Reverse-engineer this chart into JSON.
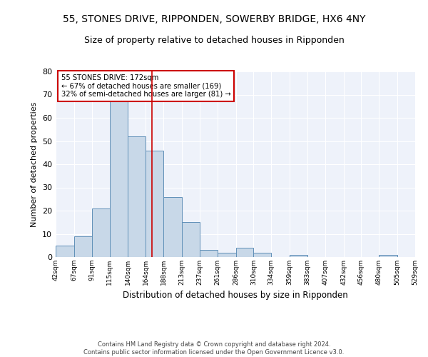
{
  "title1": "55, STONES DRIVE, RIPPONDEN, SOWERBY BRIDGE, HX6 4NY",
  "title2": "Size of property relative to detached houses in Ripponden",
  "xlabel": "Distribution of detached houses by size in Ripponden",
  "ylabel": "Number of detached properties",
  "annotation_line1": "55 STONES DRIVE: 172sqm",
  "annotation_line2": "← 67% of detached houses are smaller (169)",
  "annotation_line3": "32% of semi-detached houses are larger (81) →",
  "property_size": 172,
  "bin_edges": [
    42,
    67,
    91,
    115,
    140,
    164,
    188,
    213,
    237,
    261,
    286,
    310,
    334,
    359,
    383,
    407,
    432,
    456,
    480,
    505,
    529
  ],
  "bin_labels": [
    "42sqm",
    "67sqm",
    "91sqm",
    "115sqm",
    "140sqm",
    "164sqm",
    "188sqm",
    "213sqm",
    "237sqm",
    "261sqm",
    "286sqm",
    "310sqm",
    "334sqm",
    "359sqm",
    "383sqm",
    "407sqm",
    "432sqm",
    "456sqm",
    "480sqm",
    "505sqm",
    "529sqm"
  ],
  "counts": [
    5,
    9,
    21,
    67,
    52,
    46,
    26,
    15,
    3,
    2,
    4,
    2,
    0,
    1,
    0,
    0,
    0,
    0,
    1,
    0
  ],
  "bar_color": "#c8d8e8",
  "bar_edge_color": "#6090b8",
  "vline_color": "#cc0000",
  "vline_x": 172,
  "annotation_box_color": "#cc0000",
  "ylim": [
    0,
    80
  ],
  "yticks": [
    0,
    10,
    20,
    30,
    40,
    50,
    60,
    70,
    80
  ],
  "footer1": "Contains HM Land Registry data © Crown copyright and database right 2024.",
  "footer2": "Contains public sector information licensed under the Open Government Licence v3.0.",
  "background_color": "#eef2fa",
  "title_fontsize": 10,
  "subtitle_fontsize": 9
}
